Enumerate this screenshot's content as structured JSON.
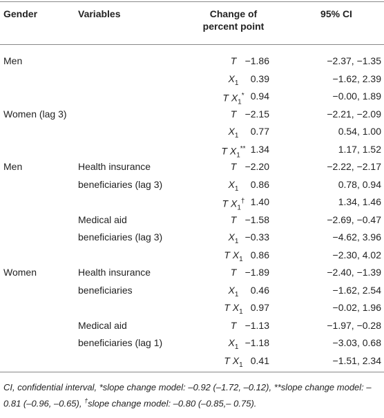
{
  "header": {
    "gender": "Gender",
    "variables": "Variables",
    "change": [
      "Change of",
      "percent point"
    ],
    "ci": "95% CI"
  },
  "table": {
    "rows": [
      {
        "gender": "Men",
        "term": {
          "base": "T"
        },
        "estimate": "−1.86",
        "ci": "−2.37, −1.35"
      },
      {
        "term": {
          "base": "X",
          "sub": "1"
        },
        "estimate": "0.39",
        "ci": "−1.62, 2.39"
      },
      {
        "term": {
          "base": "T X",
          "sub": "1",
          "sup": "*"
        },
        "estimate": "0.94",
        "ci": "−0.00, 1.89"
      },
      {
        "gender": "Women (lag 3)",
        "term": {
          "base": "T"
        },
        "estimate": "−2.15",
        "ci": "−2.21, −2.09"
      },
      {
        "term": {
          "base": "X",
          "sub": "1"
        },
        "estimate": "0.77",
        "ci": "0.54, 1.00"
      },
      {
        "term": {
          "base": "T X",
          "sub": "1",
          "sup": "**"
        },
        "estimate": "1.34",
        "ci": "1.17, 1.52"
      },
      {
        "gender": "Men",
        "variable": "Health insurance",
        "term": {
          "base": "T"
        },
        "estimate": "−2.20",
        "ci": "−2.22, −2.17"
      },
      {
        "variable": "beneficiaries (lag 3)",
        "term": {
          "base": "X",
          "sub": "1"
        },
        "estimate": "0.86",
        "ci": "0.78, 0.94"
      },
      {
        "term": {
          "base": "T X",
          "sub": "1",
          "sup": "†"
        },
        "estimate": "1.40",
        "ci": "1.34, 1.46"
      },
      {
        "variable": "Medical aid",
        "term": {
          "base": "T"
        },
        "estimate": "−1.58",
        "ci": "−2.69, −0.47"
      },
      {
        "variable": "beneficiaries (lag 3)",
        "term": {
          "base": "X",
          "sub": "1"
        },
        "estimate": "−0.33",
        "ci": "−4.62, 3.96"
      },
      {
        "term": {
          "base": "T X",
          "sub": "1"
        },
        "estimate": "0.86",
        "ci": "−2.30, 4.02"
      },
      {
        "gender": "Women",
        "variable": "Health insurance",
        "term": {
          "base": "T"
        },
        "estimate": "−1.89",
        "ci": "−2.40, −1.39"
      },
      {
        "variable": "beneficiaries",
        "term": {
          "base": "X",
          "sub": "1"
        },
        "estimate": "0.46",
        "ci": "−1.62, 2.54"
      },
      {
        "term": {
          "base": "T X",
          "sub": "1"
        },
        "estimate": "0.97",
        "ci": "−0.02, 1.96"
      },
      {
        "variable": "Medical aid",
        "term": {
          "base": "T"
        },
        "estimate": "−1.13",
        "ci": "−1.97, −0.28"
      },
      {
        "variable": "beneficiaries (lag 1)",
        "term": {
          "base": "X",
          "sub": "1"
        },
        "estimate": "−1.18",
        "ci": "−3.03, 0.68"
      },
      {
        "term": {
          "base": "T X",
          "sub": "1"
        },
        "estimate": "0.41",
        "ci": "−1.51, 2.34"
      }
    ]
  },
  "footnote": [
    "CI, confidential interval, *slope change model: –0.92 (–1.72, –0.12), **slope change model: –0.81 (–0.96, –0.65), ",
    "†",
    "slope change model: –0.80 (–0.85,– 0.75)."
  ]
}
